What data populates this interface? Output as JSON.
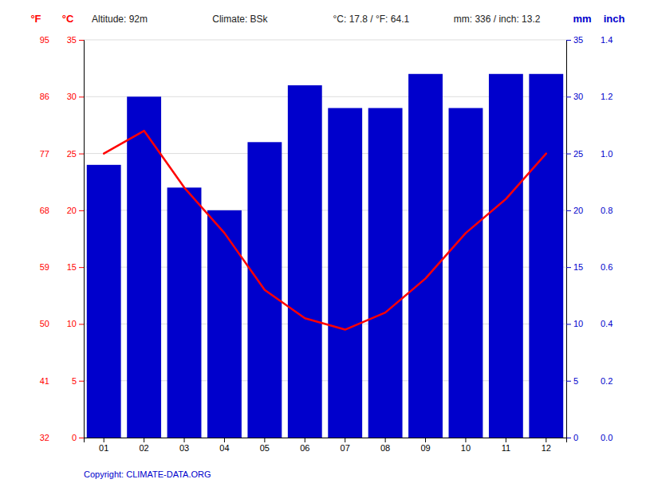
{
  "chart_data": {
    "type": "bar",
    "categories": [
      "01",
      "02",
      "03",
      "04",
      "05",
      "06",
      "07",
      "08",
      "09",
      "10",
      "11",
      "12"
    ],
    "series": [
      {
        "type": "bar",
        "axis": "y2",
        "color": "#0000cc",
        "values": [
          24,
          30,
          22,
          20,
          26,
          31,
          29,
          29,
          32,
          29,
          32,
          32
        ]
      },
      {
        "type": "line",
        "color": "#ff0000",
        "values": [
          25,
          27,
          22,
          18,
          13,
          10.5,
          9.5,
          11,
          14,
          18,
          21,
          25
        ]
      }
    ],
    "ylabel": "°C",
    "ylim": [
      0,
      35
    ],
    "yticks": [
      0,
      5,
      10,
      15,
      20,
      25,
      30,
      35
    ],
    "y3label": "°F",
    "y3lim": [
      0,
      35
    ],
    "y3ticks": [
      {
        "value": 0,
        "label": "32"
      },
      {
        "value": 5,
        "label": "41"
      },
      {
        "value": 10,
        "label": "50"
      },
      {
        "value": 15,
        "label": "59"
      },
      {
        "value": 20,
        "label": "68"
      },
      {
        "value": 25,
        "label": "77"
      },
      {
        "value": 30,
        "label": "86"
      },
      {
        "value": 35,
        "label": "95"
      }
    ],
    "y2label": "mm",
    "y2lim": [
      0,
      35
    ],
    "y2ticks": [
      0,
      5,
      10,
      15,
      20,
      25,
      30,
      35
    ],
    "y4label": "inch",
    "y4lim": [
      0,
      1.4
    ],
    "y4ticks": [
      {
        "value": 0,
        "label": "0.0"
      },
      0.2,
      0.4,
      0.6,
      0.8,
      {
        "value": 1,
        "label": "1.0"
      },
      1.2,
      1.4
    ],
    "annotations": [
      "Altitude: 92m",
      "Climate: BSk",
      "°C: 17.8 / °F: 64.1",
      "mm: 336 / inch: 13.2"
    ],
    "caption": "Copyright: CLIMATE-DATA.ORG",
    "grid": true
  }
}
